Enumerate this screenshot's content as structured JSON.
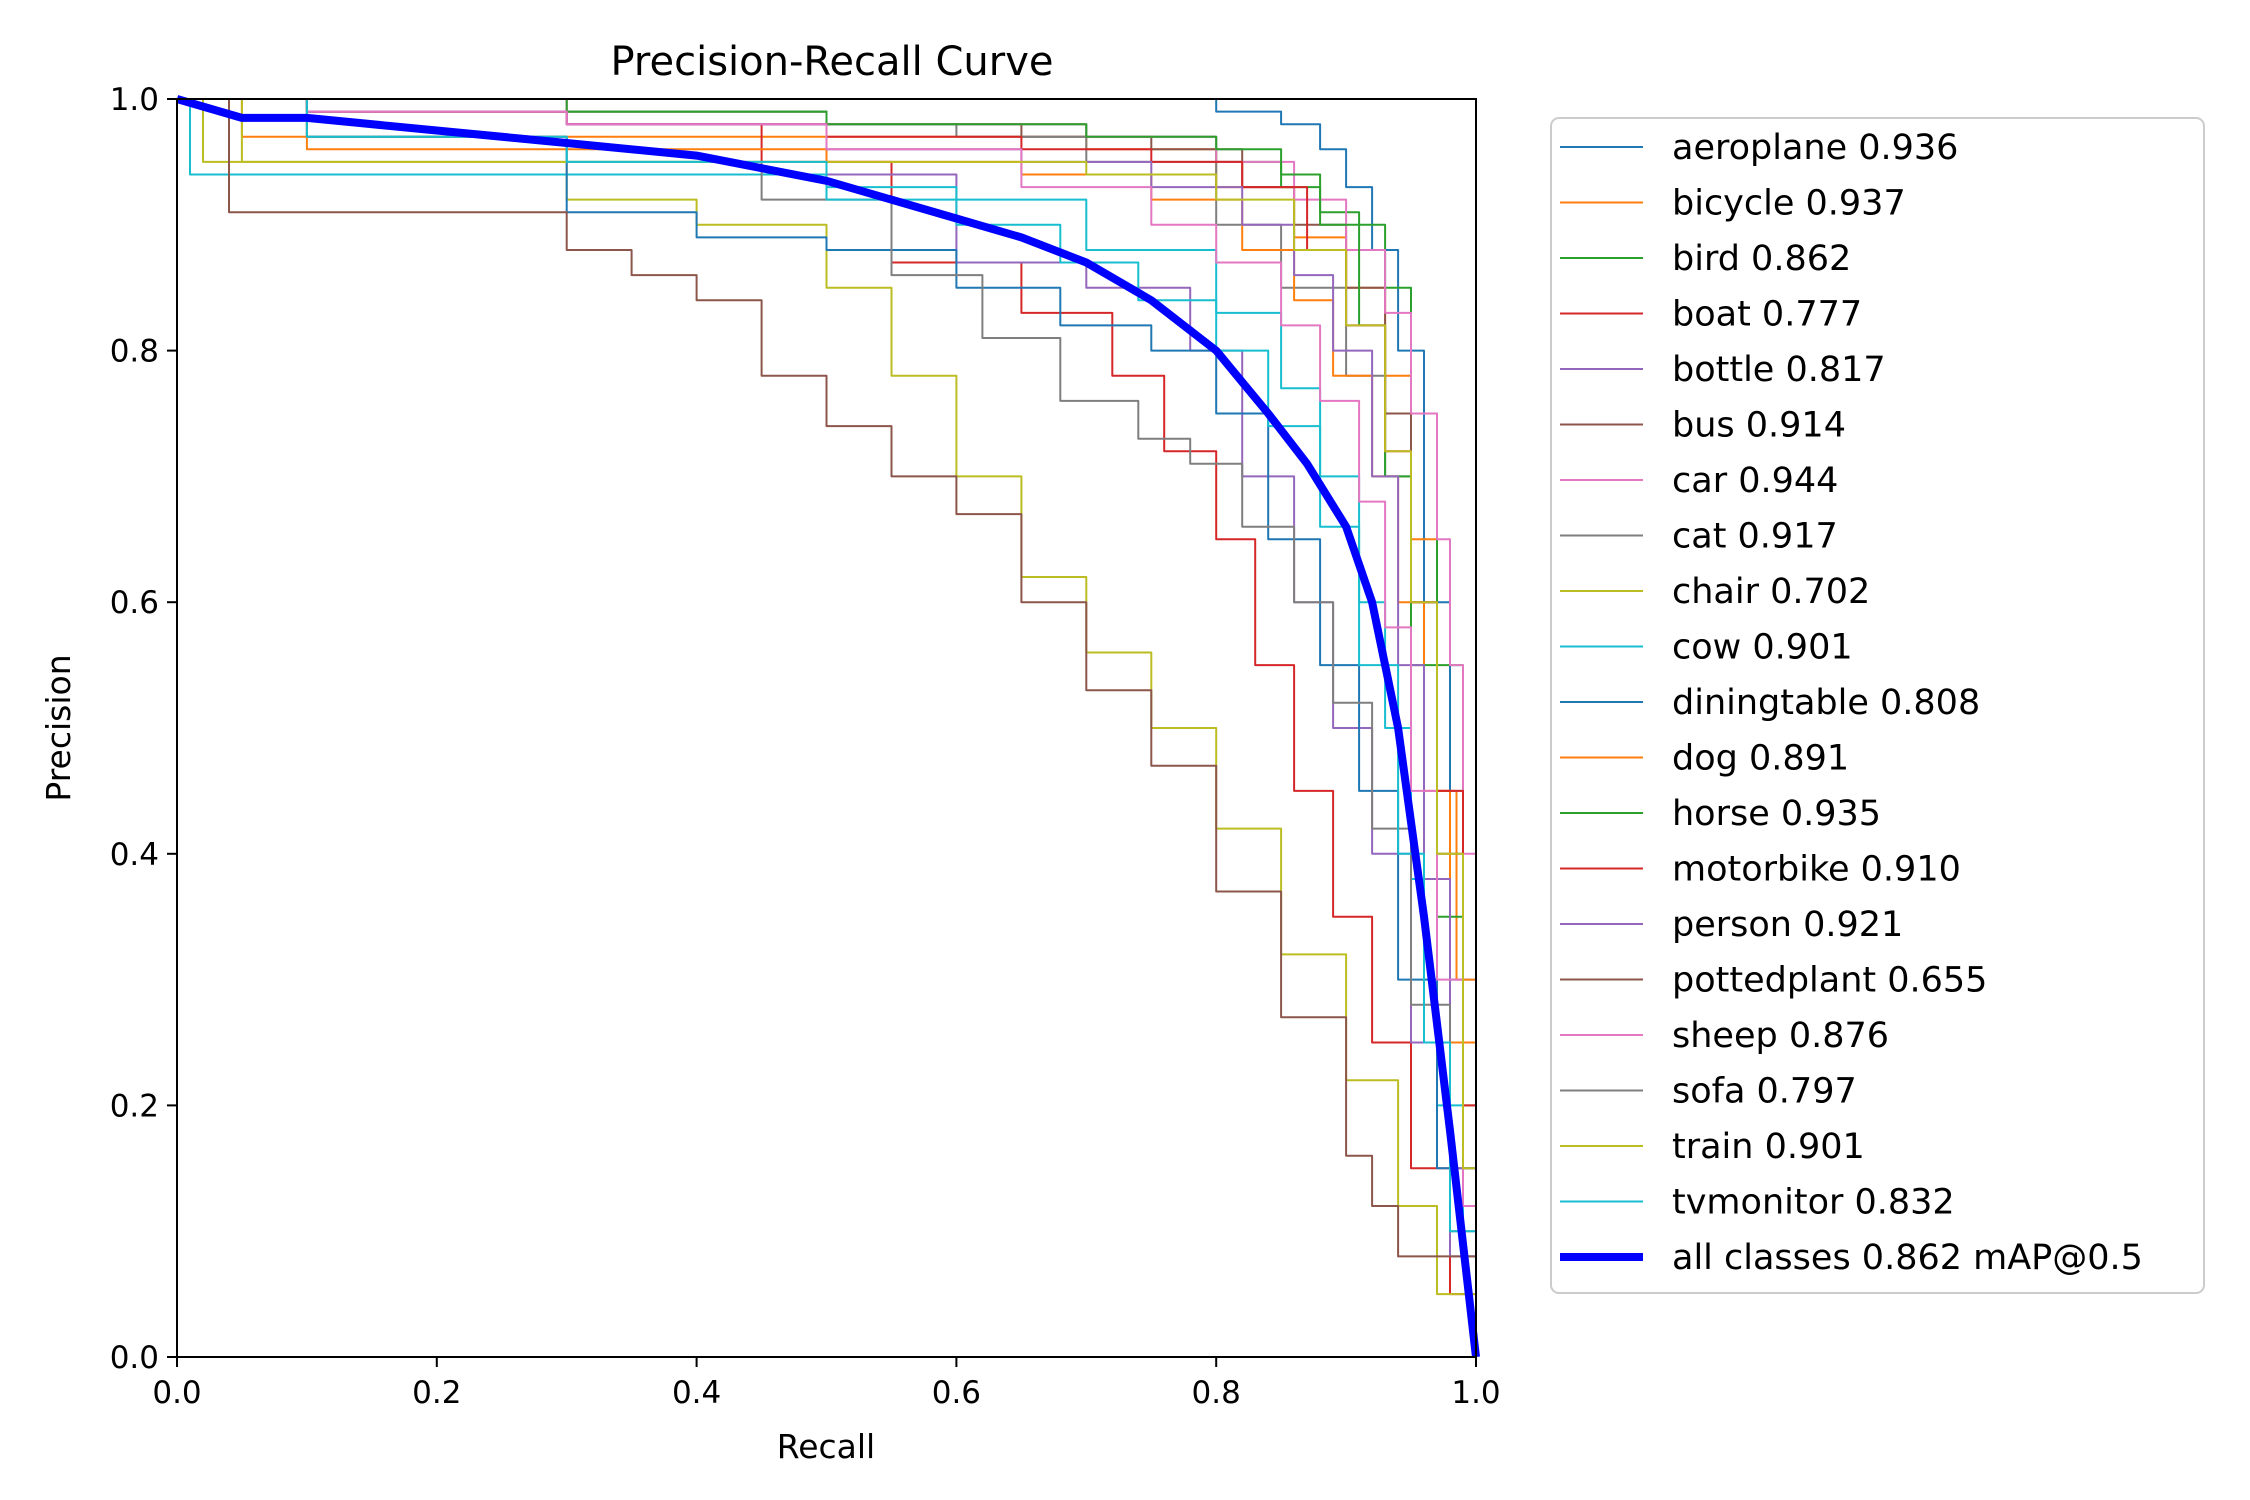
{
  "chart_data": {
    "type": "line",
    "title": "Precision-Recall Curve",
    "xlabel": "Recall",
    "ylabel": "Precision",
    "xlim": [
      0,
      1
    ],
    "ylim": [
      0,
      1
    ],
    "xticks": [
      "0.0",
      "0.2",
      "0.4",
      "0.6",
      "0.8",
      "1.0"
    ],
    "yticks": [
      "0.0",
      "0.2",
      "0.4",
      "0.6",
      "0.8",
      "1.0"
    ],
    "grid": false,
    "legend_position": "outside-right",
    "series": [
      {
        "name": "aeroplane 0.936",
        "color": "#1f77b4",
        "x": [
          0,
          0.1,
          0.3,
          0.5,
          0.7,
          0.8,
          0.85,
          0.88,
          0.9,
          0.92,
          0.94,
          0.96,
          0.98,
          1.0
        ],
        "y": [
          1.0,
          1.0,
          1.0,
          1.0,
          1.0,
          0.99,
          0.98,
          0.96,
          0.93,
          0.88,
          0.8,
          0.6,
          0.3,
          0.0
        ]
      },
      {
        "name": "bicycle 0.937",
        "color": "#ff7f0e",
        "x": [
          0,
          0.05,
          0.2,
          0.4,
          0.6,
          0.7,
          0.8,
          0.86,
          0.9,
          0.93,
          0.95,
          0.97,
          0.985,
          1.0
        ],
        "y": [
          1.0,
          0.97,
          0.97,
          0.97,
          0.97,
          0.96,
          0.93,
          0.89,
          0.85,
          0.78,
          0.65,
          0.45,
          0.3,
          0.0
        ]
      },
      {
        "name": "bird 0.862",
        "color": "#2ca02c",
        "x": [
          0,
          0.1,
          0.3,
          0.5,
          0.7,
          0.8,
          0.85,
          0.88,
          0.91,
          0.93,
          0.95,
          0.97,
          0.99,
          1.0
        ],
        "y": [
          1.0,
          0.99,
          0.99,
          0.98,
          0.97,
          0.95,
          0.93,
          0.91,
          0.9,
          0.85,
          0.75,
          0.55,
          0.25,
          0.0
        ]
      },
      {
        "name": "boat 0.777",
        "color": "#d62728",
        "x": [
          0,
          0.1,
          0.3,
          0.45,
          0.55,
          0.65,
          0.72,
          0.76,
          0.8,
          0.83,
          0.86,
          0.89,
          0.92,
          0.95,
          0.98,
          1.0
        ],
        "y": [
          1.0,
          0.99,
          0.98,
          0.95,
          0.87,
          0.83,
          0.78,
          0.72,
          0.65,
          0.55,
          0.45,
          0.35,
          0.25,
          0.15,
          0.05,
          0.0
        ]
      },
      {
        "name": "bottle 0.817",
        "color": "#9467bd",
        "x": [
          0,
          0.1,
          0.3,
          0.5,
          0.6,
          0.7,
          0.78,
          0.82,
          0.86,
          0.89,
          0.92,
          0.95,
          0.98,
          1.0
        ],
        "y": [
          1.0,
          0.99,
          0.98,
          0.94,
          0.87,
          0.85,
          0.8,
          0.7,
          0.6,
          0.5,
          0.4,
          0.25,
          0.08,
          0.0
        ]
      },
      {
        "name": "bus 0.914",
        "color": "#8c564b",
        "x": [
          0,
          0.1,
          0.3,
          0.5,
          0.65,
          0.75,
          0.82,
          0.86,
          0.9,
          0.93,
          0.95,
          0.97,
          0.99,
          1.0
        ],
        "y": [
          1.0,
          1.0,
          0.99,
          0.98,
          0.97,
          0.96,
          0.93,
          0.9,
          0.85,
          0.75,
          0.6,
          0.4,
          0.15,
          0.0
        ]
      },
      {
        "name": "car 0.944",
        "color": "#e377c2",
        "x": [
          0,
          0.1,
          0.3,
          0.5,
          0.7,
          0.8,
          0.86,
          0.9,
          0.93,
          0.95,
          0.97,
          0.98,
          0.99,
          1.0
        ],
        "y": [
          1.0,
          1.0,
          0.99,
          0.98,
          0.97,
          0.95,
          0.92,
          0.88,
          0.83,
          0.75,
          0.65,
          0.55,
          0.4,
          0.0
        ]
      },
      {
        "name": "cat 0.917",
        "color": "#7f7f7f",
        "x": [
          0,
          0.1,
          0.3,
          0.5,
          0.6,
          0.7,
          0.8,
          0.85,
          0.9,
          0.93,
          0.95,
          0.97,
          0.99,
          1.0
        ],
        "y": [
          1.0,
          0.99,
          0.99,
          0.98,
          0.97,
          0.95,
          0.9,
          0.85,
          0.78,
          0.7,
          0.6,
          0.45,
          0.2,
          0.0
        ]
      },
      {
        "name": "chair 0.702",
        "color": "#bcbd22",
        "x": [
          0,
          0.02,
          0.3,
          0.4,
          0.5,
          0.55,
          0.6,
          0.65,
          0.7,
          0.75,
          0.8,
          0.85,
          0.9,
          0.94,
          0.97,
          1.0
        ],
        "y": [
          1.0,
          0.95,
          0.92,
          0.9,
          0.85,
          0.78,
          0.7,
          0.62,
          0.56,
          0.5,
          0.42,
          0.32,
          0.22,
          0.12,
          0.05,
          0.0
        ]
      },
      {
        "name": "cow 0.901",
        "color": "#17becf",
        "x": [
          0,
          0.01,
          0.3,
          0.5,
          0.6,
          0.7,
          0.8,
          0.85,
          0.88,
          0.91,
          0.93,
          0.95,
          0.97,
          0.99,
          1.0
        ],
        "y": [
          1.0,
          0.94,
          0.94,
          0.93,
          0.92,
          0.88,
          0.83,
          0.77,
          0.7,
          0.6,
          0.5,
          0.38,
          0.2,
          0.08,
          0.0
        ]
      },
      {
        "name": "diningtable 0.808",
        "color": "#1f77b4",
        "x": [
          0,
          0.1,
          0.3,
          0.4,
          0.5,
          0.6,
          0.68,
          0.75,
          0.8,
          0.84,
          0.88,
          0.91,
          0.94,
          0.97,
          1.0
        ],
        "y": [
          1.0,
          0.97,
          0.91,
          0.89,
          0.88,
          0.85,
          0.82,
          0.8,
          0.75,
          0.65,
          0.55,
          0.45,
          0.3,
          0.15,
          0.0
        ]
      },
      {
        "name": "dog 0.891",
        "color": "#ff7f0e",
        "x": [
          0,
          0.1,
          0.3,
          0.5,
          0.65,
          0.75,
          0.82,
          0.86,
          0.89,
          0.92,
          0.94,
          0.96,
          0.98,
          1.0
        ],
        "y": [
          1.0,
          0.96,
          0.96,
          0.95,
          0.94,
          0.92,
          0.88,
          0.84,
          0.78,
          0.7,
          0.6,
          0.45,
          0.25,
          0.0
        ]
      },
      {
        "name": "horse 0.935",
        "color": "#2ca02c",
        "x": [
          0,
          0.1,
          0.3,
          0.5,
          0.7,
          0.8,
          0.85,
          0.88,
          0.91,
          0.93,
          0.95,
          0.97,
          0.99,
          1.0
        ],
        "y": [
          1.0,
          1.0,
          0.99,
          0.98,
          0.97,
          0.96,
          0.94,
          0.9,
          0.82,
          0.7,
          0.55,
          0.35,
          0.15,
          0.0
        ]
      },
      {
        "name": "motorbike 0.910",
        "color": "#d62728",
        "x": [
          0,
          0.1,
          0.3,
          0.5,
          0.65,
          0.75,
          0.82,
          0.87,
          0.9,
          0.93,
          0.95,
          0.97,
          0.99,
          1.0
        ],
        "y": [
          1.0,
          0.99,
          0.98,
          0.97,
          0.96,
          0.95,
          0.93,
          0.88,
          0.82,
          0.72,
          0.6,
          0.45,
          0.2,
          0.0
        ]
      },
      {
        "name": "person 0.921",
        "color": "#9467bd",
        "x": [
          0,
          0.1,
          0.3,
          0.5,
          0.65,
          0.75,
          0.82,
          0.86,
          0.89,
          0.92,
          0.94,
          0.96,
          0.98,
          1.0
        ],
        "y": [
          1.0,
          0.99,
          0.98,
          0.96,
          0.95,
          0.93,
          0.9,
          0.86,
          0.8,
          0.7,
          0.55,
          0.38,
          0.15,
          0.0
        ]
      },
      {
        "name": "pottedplant 0.655",
        "color": "#8c564b",
        "x": [
          0,
          0.04,
          0.25,
          0.3,
          0.35,
          0.4,
          0.45,
          0.5,
          0.55,
          0.6,
          0.65,
          0.7,
          0.75,
          0.8,
          0.85,
          0.9,
          0.92,
          0.94,
          1.0
        ],
        "y": [
          1.0,
          0.91,
          0.91,
          0.88,
          0.86,
          0.84,
          0.78,
          0.74,
          0.7,
          0.67,
          0.6,
          0.53,
          0.47,
          0.37,
          0.27,
          0.16,
          0.12,
          0.08,
          0.0
        ]
      },
      {
        "name": "sheep 0.876",
        "color": "#e377c2",
        "x": [
          0,
          0.1,
          0.3,
          0.5,
          0.65,
          0.75,
          0.8,
          0.85,
          0.88,
          0.91,
          0.93,
          0.95,
          0.97,
          0.99,
          1.0
        ],
        "y": [
          1.0,
          0.99,
          0.98,
          0.96,
          0.93,
          0.9,
          0.87,
          0.82,
          0.76,
          0.68,
          0.58,
          0.45,
          0.3,
          0.12,
          0.0
        ]
      },
      {
        "name": "sofa 0.797",
        "color": "#7f7f7f",
        "x": [
          0,
          0.1,
          0.3,
          0.45,
          0.55,
          0.62,
          0.68,
          0.74,
          0.78,
          0.82,
          0.86,
          0.89,
          0.92,
          0.95,
          0.98,
          1.0
        ],
        "y": [
          1.0,
          0.97,
          0.95,
          0.92,
          0.86,
          0.81,
          0.76,
          0.73,
          0.71,
          0.66,
          0.6,
          0.52,
          0.42,
          0.28,
          0.1,
          0.0
        ]
      },
      {
        "name": "train 0.901",
        "color": "#bcbd22",
        "x": [
          0,
          0.05,
          0.3,
          0.5,
          0.7,
          0.8,
          0.86,
          0.9,
          0.93,
          0.95,
          0.97,
          0.99,
          1.0
        ],
        "y": [
          1.0,
          0.95,
          0.95,
          0.95,
          0.94,
          0.92,
          0.88,
          0.82,
          0.72,
          0.6,
          0.4,
          0.15,
          0.0
        ]
      },
      {
        "name": "tvmonitor 0.832",
        "color": "#17becf",
        "x": [
          0,
          0.1,
          0.3,
          0.5,
          0.6,
          0.68,
          0.74,
          0.8,
          0.84,
          0.88,
          0.91,
          0.94,
          0.96,
          0.98,
          1.0
        ],
        "y": [
          1.0,
          0.97,
          0.95,
          0.92,
          0.9,
          0.87,
          0.84,
          0.8,
          0.74,
          0.66,
          0.55,
          0.4,
          0.25,
          0.1,
          0.0
        ]
      },
      {
        "name": "all classes 0.862 mAP@0.5",
        "color": "#0000ff",
        "bold": true,
        "x": [
          0,
          0.05,
          0.1,
          0.2,
          0.3,
          0.4,
          0.5,
          0.6,
          0.65,
          0.7,
          0.75,
          0.8,
          0.84,
          0.87,
          0.9,
          0.92,
          0.94,
          0.96,
          0.98,
          1.0
        ],
        "y": [
          1.0,
          0.985,
          0.985,
          0.975,
          0.965,
          0.955,
          0.935,
          0.905,
          0.89,
          0.87,
          0.84,
          0.8,
          0.75,
          0.71,
          0.66,
          0.6,
          0.5,
          0.35,
          0.18,
          0.0
        ]
      }
    ]
  }
}
